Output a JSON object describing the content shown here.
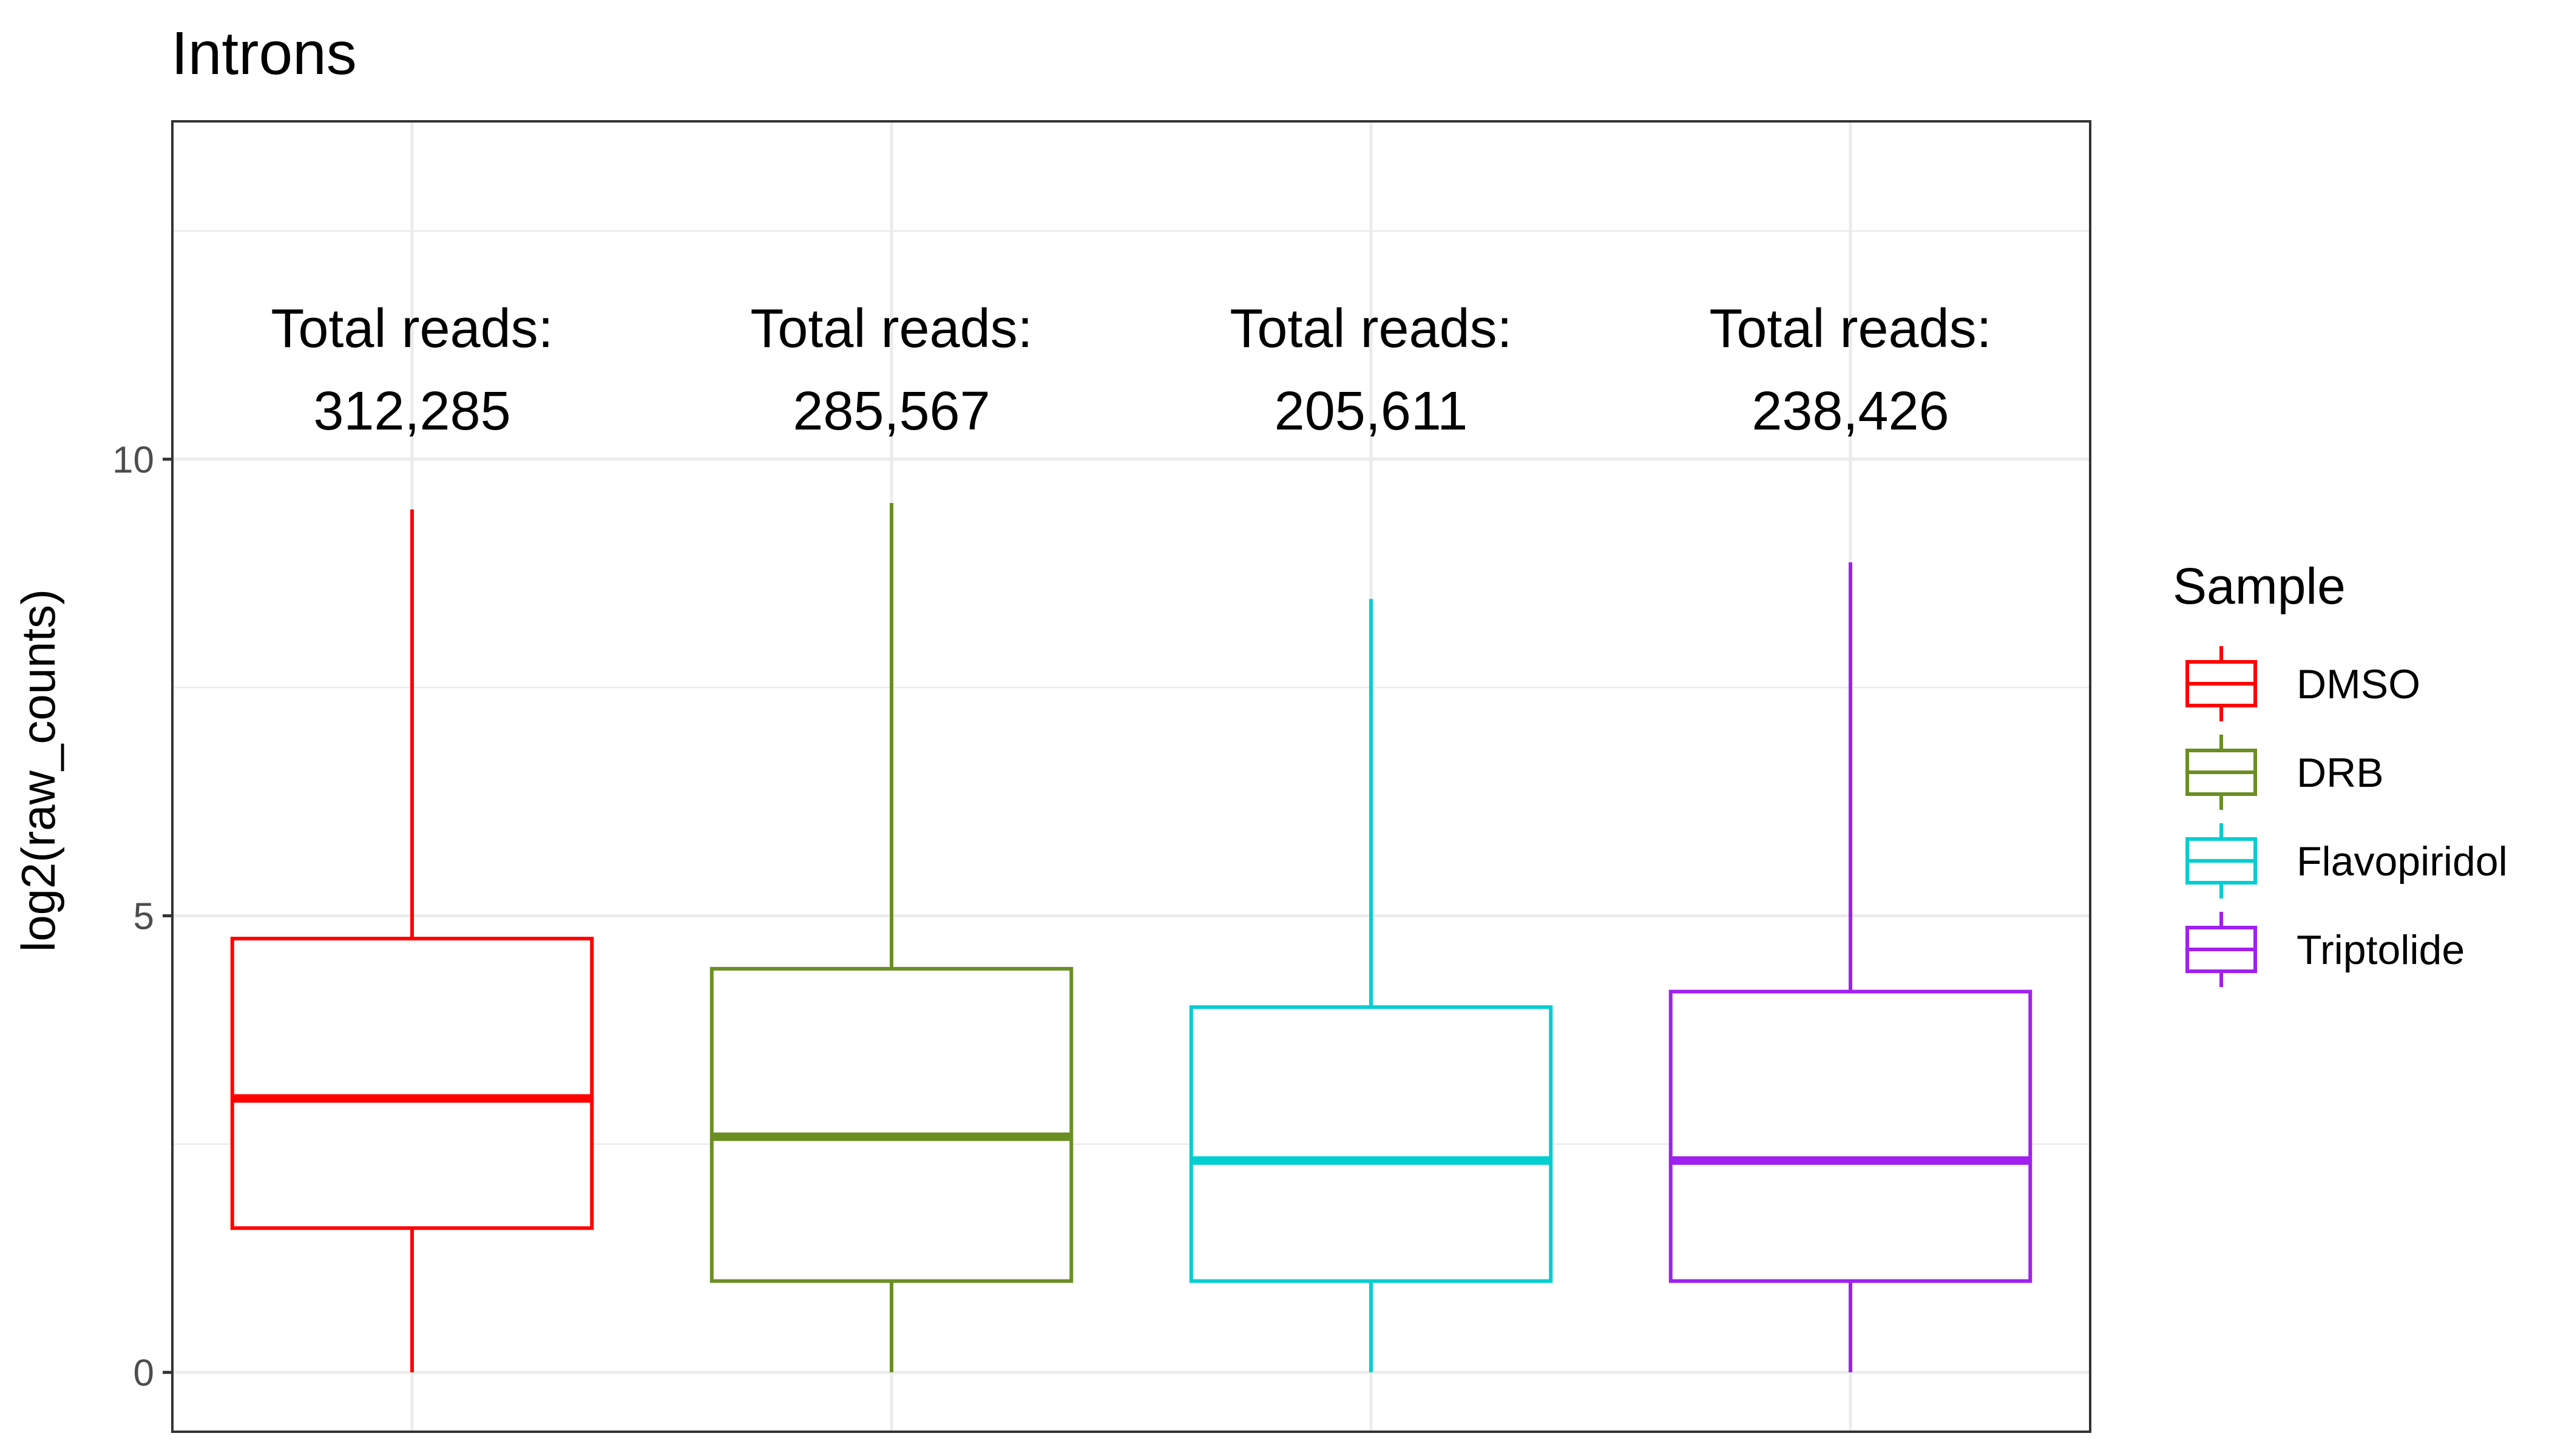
{
  "chart_data": {
    "type": "box",
    "title": "Introns",
    "xlabel": "",
    "ylabel": "log2(raw_counts)",
    "ylim": [
      -0.65,
      13.7
    ],
    "yticks": [
      0,
      5,
      10
    ],
    "ytick_labels": [
      "0",
      "5",
      "10"
    ],
    "grid": true,
    "legend": {
      "title": "Sample",
      "position": "right"
    },
    "series": [
      {
        "name": "DMSO",
        "color": "#FF0000",
        "annotation": [
          "Total reads:",
          "312,285"
        ],
        "whisker_low": 0,
        "q1": 1.58,
        "median": 3.0,
        "q3": 4.75,
        "whisker_high": 9.45
      },
      {
        "name": "DRB",
        "color": "#6B8E23",
        "annotation": [
          "Total reads:",
          "285,567"
        ],
        "whisker_low": 0,
        "q1": 1.0,
        "median": 2.58,
        "q3": 4.42,
        "whisker_high": 9.52
      },
      {
        "name": "Flavopiridol",
        "color": "#00CED1",
        "annotation": [
          "Total reads:",
          "205,611"
        ],
        "whisker_low": 0,
        "q1": 1.0,
        "median": 2.32,
        "q3": 4.0,
        "whisker_high": 8.47
      },
      {
        "name": "Triptolide",
        "color": "#A020F0",
        "annotation": [
          "Total reads:",
          "238,426"
        ],
        "whisker_low": 0,
        "q1": 1.0,
        "median": 2.32,
        "q3": 4.17,
        "whisker_high": 8.87
      }
    ]
  }
}
